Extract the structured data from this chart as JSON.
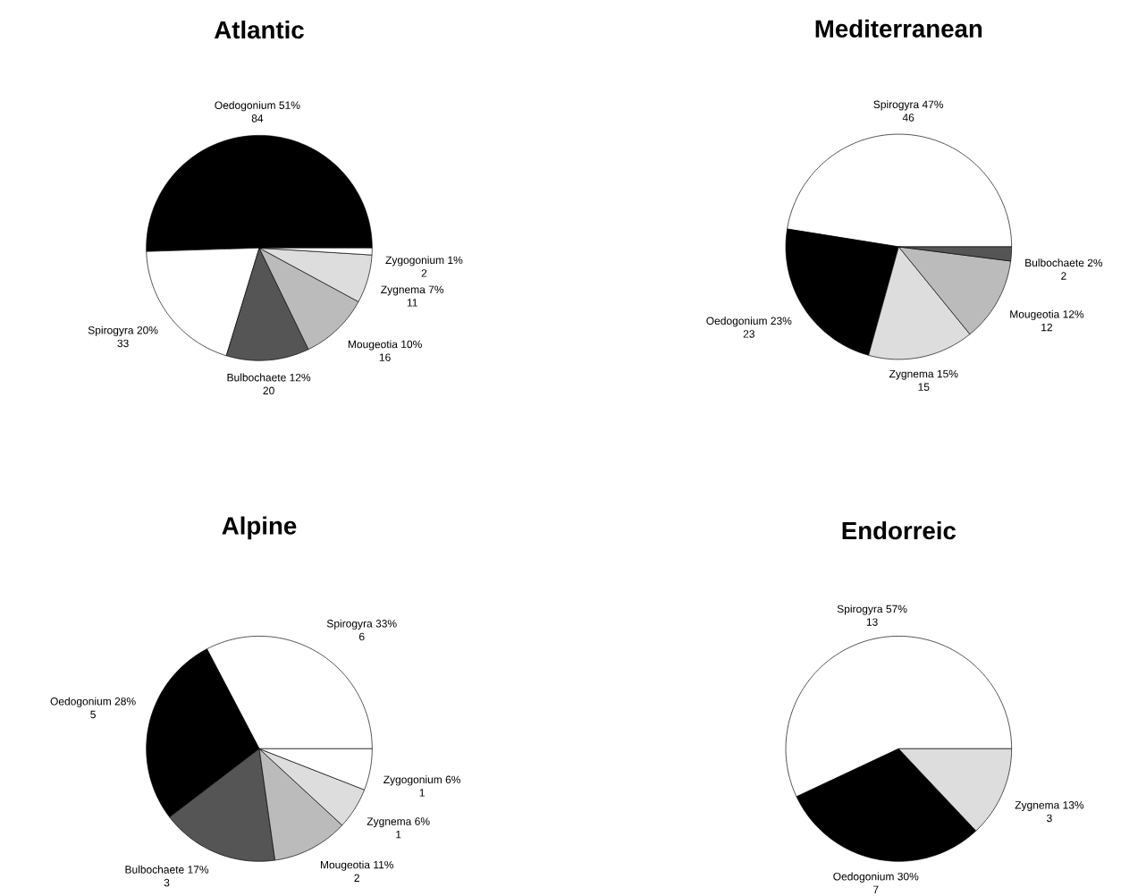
{
  "chart_data": [
    {
      "type": "pie",
      "title": "Atlantic",
      "categories": [
        "Oedogonium",
        "Spirogyra",
        "Bulbochaete",
        "Mougeotia",
        "Zygnema",
        "Zygogonium"
      ],
      "values": [
        51,
        20,
        12,
        10,
        7,
        1
      ],
      "value_labels": [
        "51%",
        "20%",
        "12%",
        "10%",
        "7%",
        "1%"
      ],
      "annotations": [
        "84",
        "33",
        "20",
        "16",
        "11",
        "2"
      ],
      "colors": [
        "#000000",
        "#ffffff",
        "#555555",
        "#bbbbbb",
        "#dddddd",
        "#ffffff"
      ]
    },
    {
      "type": "pie",
      "title": "Mediterranean",
      "categories": [
        "Spirogyra",
        "Oedogonium",
        "Zygnema",
        "Mougeotia",
        "Bulbochaete"
      ],
      "values": [
        47,
        23,
        15,
        12,
        2
      ],
      "value_labels": [
        "47%",
        "23%",
        "15%",
        "12%",
        "2%"
      ],
      "annotations": [
        "46",
        "23",
        "15",
        "12",
        "2"
      ],
      "colors": [
        "#ffffff",
        "#000000",
        "#dddddd",
        "#bbbbbb",
        "#555555"
      ]
    },
    {
      "type": "pie",
      "title": "Alpine",
      "categories": [
        "Spirogyra",
        "Oedogonium",
        "Bulbochaete",
        "Mougeotia",
        "Zygnema",
        "Zygogonium"
      ],
      "values": [
        33,
        28,
        17,
        11,
        6,
        6
      ],
      "value_labels": [
        "33%",
        "28%",
        "17%",
        "11%",
        "6%",
        "6%"
      ],
      "annotations": [
        "6",
        "5",
        "3",
        "2",
        "1",
        "1"
      ],
      "colors": [
        "#ffffff",
        "#000000",
        "#555555",
        "#bbbbbb",
        "#dddddd",
        "#ffffff"
      ]
    },
    {
      "type": "pie",
      "title": "Endorreic",
      "categories": [
        "Spirogyra",
        "Oedogonium",
        "Zygnema"
      ],
      "values": [
        57,
        30,
        13
      ],
      "value_labels": [
        "57%",
        "30%",
        "13%"
      ],
      "annotations": [
        "13",
        "7",
        "3"
      ],
      "colors": [
        "#ffffff",
        "#000000",
        "#dddddd"
      ]
    }
  ]
}
